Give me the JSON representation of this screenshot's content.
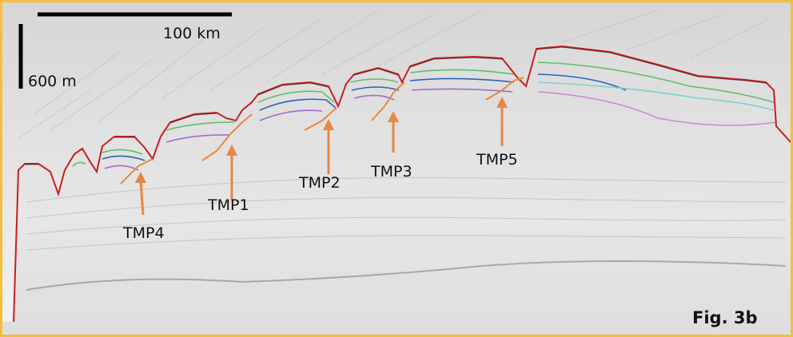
{
  "scale": {
    "horizontal_label": "100 km",
    "vertical_label": "600 m"
  },
  "tmp_labels": [
    {
      "id": "TMP1",
      "text": "TMP1"
    },
    {
      "id": "TMP2",
      "text": "TMP2"
    },
    {
      "id": "TMP3",
      "text": "TMP3"
    },
    {
      "id": "TMP4",
      "text": "TMP4"
    },
    {
      "id": "TMP5",
      "text": "TMP5"
    }
  ],
  "figure_label": "Fig. 3b",
  "colors": {
    "border": "#f5bf3a",
    "seafloor": "#c81e1e",
    "pick_line": "#e8873f",
    "arrow": "#e8873f"
  }
}
